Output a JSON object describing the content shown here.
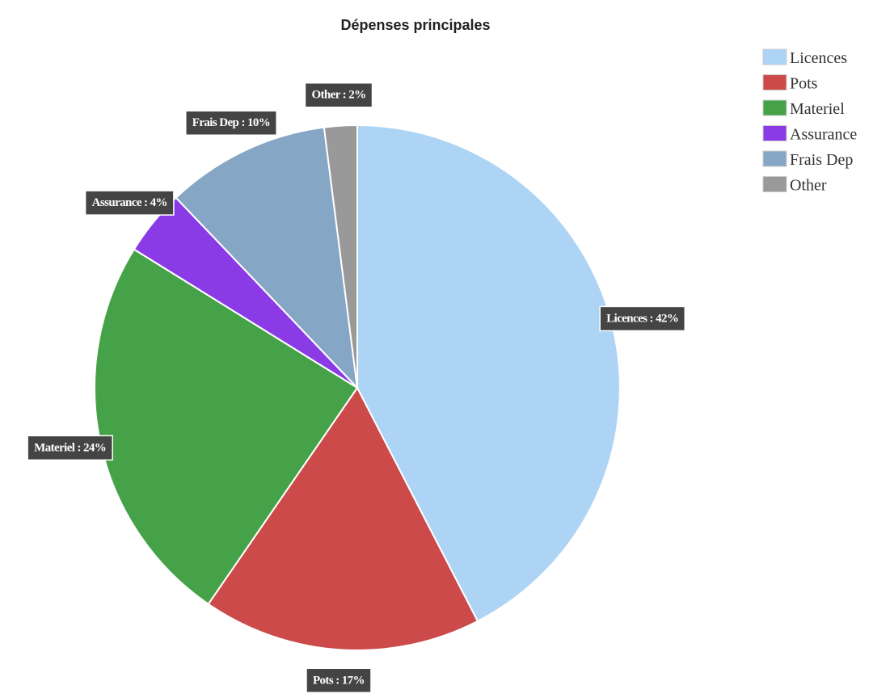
{
  "chart_data": {
    "type": "pie",
    "title": "Dépenses principales",
    "slices": [
      {
        "name": "Licences",
        "value": 42,
        "label": "Licences : 42%",
        "color": "#aed4f5"
      },
      {
        "name": "Pots",
        "value": 17,
        "label": "Pots : 17%",
        "color": "#cc4a4a"
      },
      {
        "name": "Materiel",
        "value": 24,
        "label": "Materiel : 24%",
        "color": "#46a249"
      },
      {
        "name": "Assurance",
        "value": 4,
        "label": "Assurance : 4%",
        "color": "#8a3be6"
      },
      {
        "name": "Frais Dep",
        "value": 10,
        "label": "Frais Dep : 10%",
        "color": "#86a6c6"
      },
      {
        "name": "Other",
        "value": 2,
        "label": "Other : 2%",
        "color": "#999999"
      }
    ],
    "legend": {
      "position": "top-right",
      "entries": [
        "Licences",
        "Pots",
        "Materiel",
        "Assurance",
        "Frais Dep",
        "Other"
      ]
    }
  }
}
